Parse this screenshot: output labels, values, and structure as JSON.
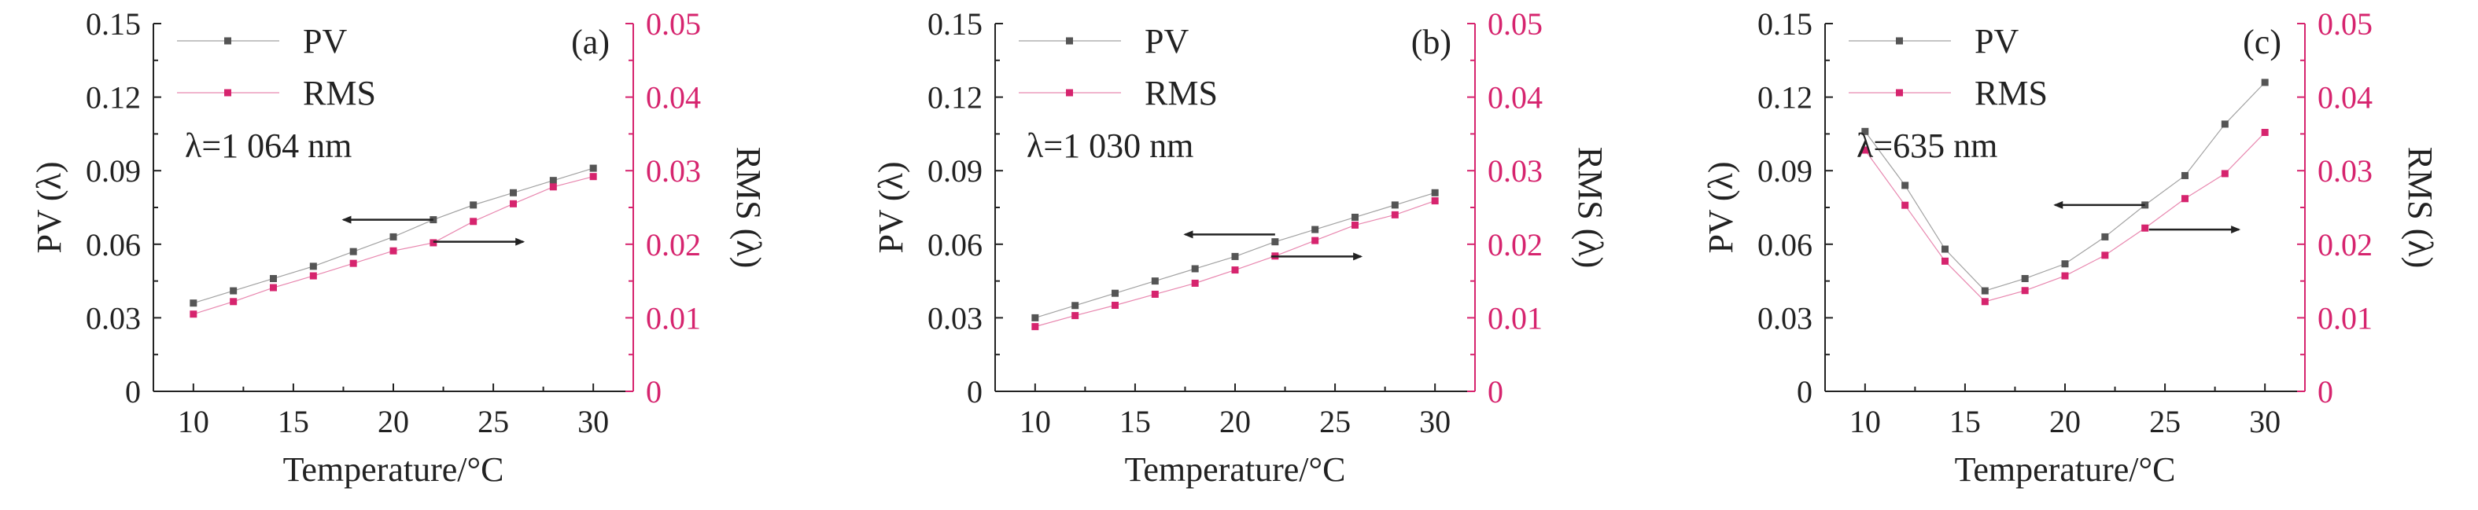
{
  "colors": {
    "pv": "#555555",
    "rms": "#d6246e",
    "axis": "#222222",
    "right_axis": "#d6246e"
  },
  "chart_data": [
    {
      "type": "line",
      "panel_label": "(a)",
      "annotation": "λ=1 064 nm",
      "xlabel": "Temperature/°C",
      "ylabel": "PV (λ)",
      "y2label": "RMS (λ)",
      "xlim": [
        8,
        32
      ],
      "ylim": [
        0,
        0.15
      ],
      "y2lim": [
        0,
        0.05
      ],
      "x_ticks": [
        "10",
        "15",
        "20",
        "25",
        "30"
      ],
      "y_ticks": [
        "0",
        "0.03",
        "0.06",
        "0.09",
        "0.12",
        "0.15"
      ],
      "y2_ticks": [
        "0",
        "0.01",
        "0.02",
        "0.03",
        "0.04",
        "0.05"
      ],
      "x": [
        10,
        12,
        14,
        16,
        18,
        20,
        22,
        24,
        26,
        28,
        30
      ],
      "series": [
        {
          "name": "PV",
          "axis": "left",
          "values": [
            0.036,
            0.041,
            0.046,
            0.051,
            0.057,
            0.063,
            0.07,
            0.076,
            0.081,
            0.086,
            0.091
          ]
        },
        {
          "name": "RMS",
          "axis": "right",
          "values": [
            0.0105,
            0.0122,
            0.0141,
            0.0157,
            0.0174,
            0.0191,
            0.0202,
            0.0231,
            0.0255,
            0.0278,
            0.0292
          ]
        }
      ],
      "arrows": [
        {
          "from": [
            22,
            0.07
          ],
          "to": [
            17.5,
            0.07
          ]
        },
        {
          "from": [
            22,
            0.061
          ],
          "to": [
            26.5,
            0.061
          ]
        }
      ]
    },
    {
      "type": "line",
      "panel_label": "(b)",
      "annotation": "λ=1 030 nm",
      "xlabel": "Temperature/°C",
      "ylabel": "PV (λ)",
      "y2label": "RMS (λ)",
      "xlim": [
        8,
        32
      ],
      "ylim": [
        0,
        0.15
      ],
      "y2lim": [
        0,
        0.05
      ],
      "x_ticks": [
        "10",
        "15",
        "20",
        "25",
        "30"
      ],
      "y_ticks": [
        "0",
        "0.03",
        "0.06",
        "0.09",
        "0.12",
        "0.15"
      ],
      "y2_ticks": [
        "0",
        "0.01",
        "0.02",
        "0.03",
        "0.04",
        "0.05"
      ],
      "x": [
        10,
        12,
        14,
        16,
        18,
        20,
        22,
        24,
        26,
        28,
        30
      ],
      "series": [
        {
          "name": "PV",
          "axis": "left",
          "values": [
            0.03,
            0.035,
            0.04,
            0.045,
            0.05,
            0.055,
            0.061,
            0.066,
            0.071,
            0.076,
            0.081
          ]
        },
        {
          "name": "RMS",
          "axis": "right",
          "values": [
            0.0088,
            0.0103,
            0.0117,
            0.0132,
            0.0147,
            0.0165,
            0.0184,
            0.0205,
            0.0226,
            0.024,
            0.0259
          ]
        }
      ],
      "arrows": [
        {
          "from": [
            22,
            0.064
          ],
          "to": [
            17.5,
            0.064
          ]
        },
        {
          "from": [
            21.8,
            0.055
          ],
          "to": [
            26.3,
            0.055
          ]
        }
      ]
    },
    {
      "type": "line",
      "panel_label": "(c)",
      "annotation": "λ=635 nm",
      "xlabel": "Temperature/°C",
      "ylabel": "PV (λ)",
      "y2label": "RMS (λ)",
      "xlim": [
        8,
        32
      ],
      "ylim": [
        0,
        0.15
      ],
      "y2lim": [
        0,
        0.05
      ],
      "x_ticks": [
        "10",
        "15",
        "20",
        "25",
        "30"
      ],
      "y_ticks": [
        "0",
        "0.03",
        "0.06",
        "0.09",
        "0.12",
        "0.15"
      ],
      "y2_ticks": [
        "0",
        "0.01",
        "0.02",
        "0.03",
        "0.04",
        "0.05"
      ],
      "x": [
        10,
        12,
        14,
        16,
        18,
        20,
        22,
        24,
        26,
        28,
        30
      ],
      "series": [
        {
          "name": "PV",
          "axis": "left",
          "values": [
            0.106,
            0.084,
            0.058,
            0.041,
            0.046,
            0.052,
            0.063,
            0.076,
            0.088,
            0.109,
            0.126
          ]
        },
        {
          "name": "RMS",
          "axis": "right",
          "values": [
            0.0328,
            0.0253,
            0.0177,
            0.0122,
            0.0137,
            0.0157,
            0.0185,
            0.0222,
            0.0262,
            0.0296,
            0.0352
          ]
        }
      ],
      "arrows": [
        {
          "from": [
            24,
            0.076
          ],
          "to": [
            19.5,
            0.076
          ]
        },
        {
          "from": [
            24.2,
            0.066
          ],
          "to": [
            28.7,
            0.066
          ]
        }
      ]
    }
  ]
}
